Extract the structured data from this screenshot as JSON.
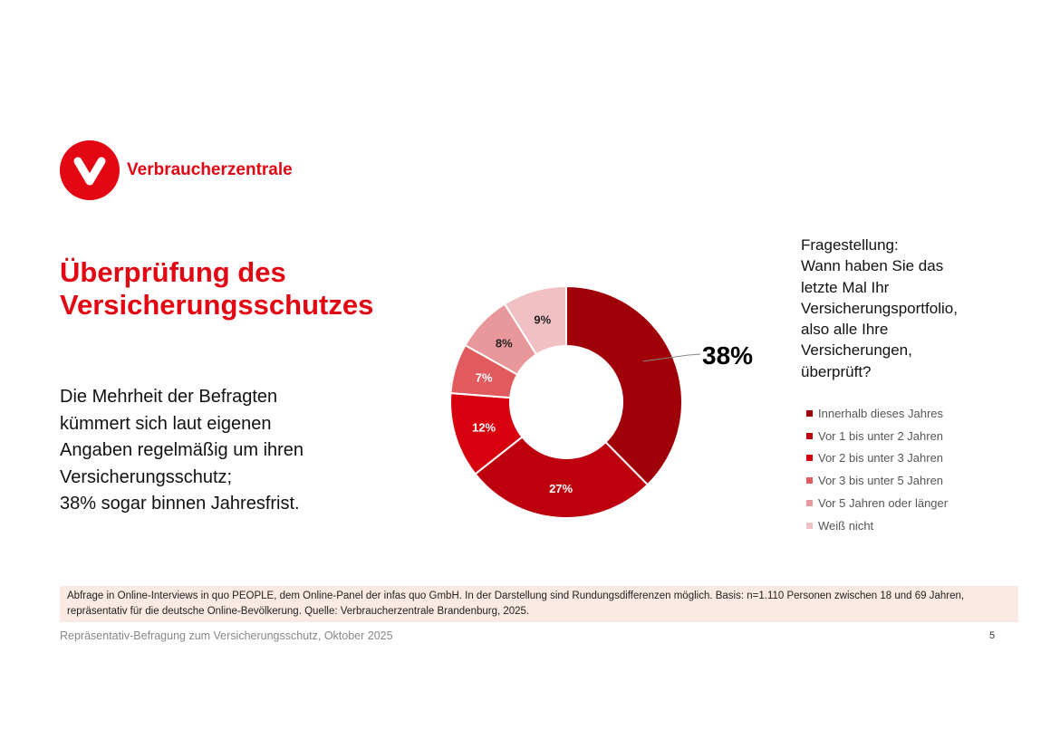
{
  "logo": {
    "text": "Verbraucherzentrale",
    "brand_color": "#e30613"
  },
  "title": {
    "line1": "Überprüfung des",
    "line2": "Versicherungsschutzes"
  },
  "body": {
    "lines": [
      "Die Mehrheit der Befragten",
      "kümmert sich laut eigenen",
      "Angaben regelmäßig um ihren",
      "Versicherungsschutz;",
      "38% sogar binnen Jahresfrist."
    ]
  },
  "question": {
    "lines": [
      "Fragestellung:",
      "Wann haben Sie das",
      "letzte Mal Ihr",
      "Versicherungsportfolio,",
      "also alle Ihre",
      "Versicherungen,",
      "überprüft?"
    ]
  },
  "chart_data": {
    "type": "pie",
    "donut": true,
    "categories": [
      "Innerhalb dieses Jahres",
      "Vor 1 bis unter 2 Jahren",
      "Vor 2 bis unter 3 Jahren",
      "Vor 3 bis unter 5 Jahren",
      "Vor 5 Jahren oder länger",
      "Weiß nicht"
    ],
    "values": [
      38,
      27,
      12,
      7,
      8,
      9
    ],
    "labels": [
      "38%",
      "27%",
      "12%",
      "7%",
      "8%",
      "9%"
    ],
    "colors": [
      "#a00008",
      "#be000e",
      "#d8000f",
      "#e05a5e",
      "#e8979a",
      "#f0c0c2"
    ],
    "label_colors": [
      "#000",
      "#fff",
      "#fff",
      "#fff",
      "#222",
      "#222"
    ],
    "legend_position": "right"
  },
  "note": "Abfrage in Online-Interviews in quo PEOPLE, dem Online-Panel der infas quo GmbH. In der Darstellung sind Rundungsdifferenzen möglich. Basis: n=1.110 Personen zwischen 18 und 69 Jahren, repräsentativ für die deutsche Online-Bevölkerung. Quelle: Verbraucherzentrale Brandenburg, 2025.",
  "footer": "Repräsentativ-Befragung zum Versicherungsschutz, Oktober 2025",
  "page_number": "5"
}
